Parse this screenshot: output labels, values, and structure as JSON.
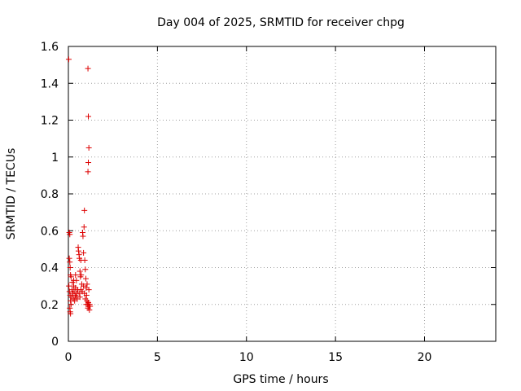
{
  "chart_data": {
    "type": "scatter",
    "title": "Day 004 of 2025, SRMTID for receiver chpg",
    "xlabel": "GPS time / hours",
    "ylabel": "SRMTID / TECUs",
    "xlim": [
      0,
      24
    ],
    "ylim": [
      0,
      1.6
    ],
    "xticks": [
      0,
      5,
      10,
      15,
      20
    ],
    "xtick_labels": [
      "0",
      "5",
      "10",
      "15",
      "20"
    ],
    "yticks": [
      0,
      0.2,
      0.4,
      0.6,
      0.8,
      1,
      1.2,
      1.4,
      1.6
    ],
    "ytick_labels": [
      "0",
      "0.2",
      "0.4",
      "0.6",
      "0.8",
      "1",
      "1.2",
      "1.4",
      "1.6"
    ],
    "grid": true,
    "marker": "+",
    "color": "#dd0000",
    "series": [
      {
        "name": "SRMTID",
        "points": [
          [
            0.02,
            1.53
          ],
          [
            0.05,
            0.59
          ],
          [
            0.08,
            0.58
          ],
          [
            0.05,
            0.45
          ],
          [
            0.08,
            0.43
          ],
          [
            0.1,
            0.4
          ],
          [
            0.12,
            0.36
          ],
          [
            0.03,
            0.3
          ],
          [
            0.06,
            0.27
          ],
          [
            0.1,
            0.25
          ],
          [
            0.12,
            0.22
          ],
          [
            0.15,
            0.2
          ],
          [
            0.08,
            0.18
          ],
          [
            0.1,
            0.16
          ],
          [
            0.12,
            0.15
          ],
          [
            0.18,
            0.24
          ],
          [
            0.2,
            0.28
          ],
          [
            0.22,
            0.32
          ],
          [
            0.25,
            0.26
          ],
          [
            0.28,
            0.23
          ],
          [
            0.3,
            0.3
          ],
          [
            0.32,
            0.27
          ],
          [
            0.35,
            0.22
          ],
          [
            0.38,
            0.25
          ],
          [
            0.4,
            0.29
          ],
          [
            0.42,
            0.24
          ],
          [
            0.45,
            0.33
          ],
          [
            0.48,
            0.26
          ],
          [
            0.5,
            0.23
          ],
          [
            0.52,
            0.28
          ],
          [
            0.55,
            0.51
          ],
          [
            0.57,
            0.49
          ],
          [
            0.6,
            0.47
          ],
          [
            0.62,
            0.45
          ],
          [
            0.65,
            0.38
          ],
          [
            0.68,
            0.35
          ],
          [
            0.7,
            0.44
          ],
          [
            0.72,
            0.36
          ],
          [
            0.75,
            0.31
          ],
          [
            0.78,
            0.27
          ],
          [
            0.8,
            0.59
          ],
          [
            0.82,
            0.57
          ],
          [
            0.85,
            0.48
          ],
          [
            0.88,
            0.62
          ],
          [
            0.9,
            0.71
          ],
          [
            0.92,
            0.44
          ],
          [
            0.95,
            0.39
          ],
          [
            0.98,
            0.34
          ],
          [
            1.0,
            0.29
          ],
          [
            1.02,
            0.25
          ],
          [
            1.05,
            0.22
          ],
          [
            1.08,
            0.2
          ],
          [
            1.1,
            0.18
          ],
          [
            1.12,
            0.21
          ],
          [
            1.15,
            0.19
          ],
          [
            1.18,
            0.17
          ],
          [
            1.2,
            0.2
          ],
          [
            1.22,
            0.19
          ],
          [
            0.6,
            0.26
          ],
          [
            0.65,
            0.24
          ],
          [
            0.7,
            0.28
          ],
          [
            0.85,
            0.3
          ],
          [
            0.9,
            0.26
          ],
          [
            0.95,
            0.23
          ],
          [
            1.0,
            0.2
          ],
          [
            0.4,
            0.36
          ],
          [
            0.3,
            0.33
          ],
          [
            0.15,
            0.35
          ],
          [
            1.1,
            1.48
          ],
          [
            1.12,
            1.22
          ],
          [
            1.15,
            1.05
          ],
          [
            1.12,
            0.97
          ],
          [
            1.1,
            0.92
          ],
          [
            1.05,
            0.31
          ],
          [
            1.15,
            0.28
          ]
        ]
      }
    ]
  }
}
